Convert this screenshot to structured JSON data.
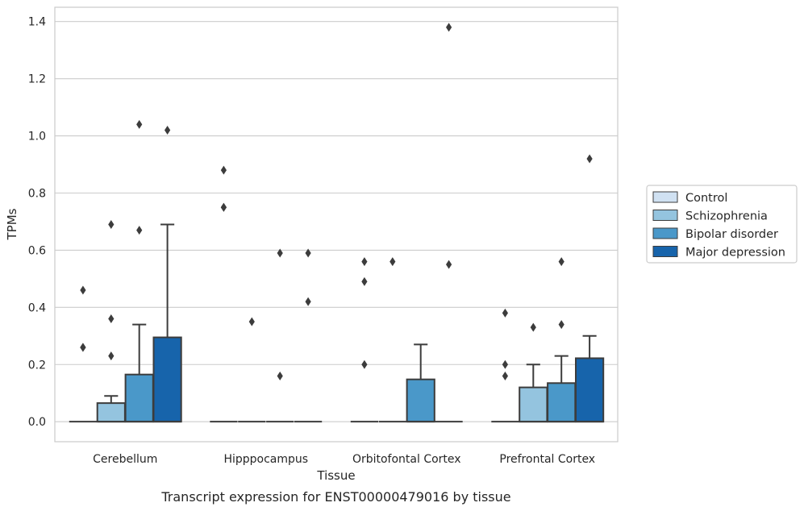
{
  "caption": "Transcript expression for ENST00000479016 by tissue",
  "chart_data": {
    "type": "box",
    "title": "",
    "xlabel": "Tissue",
    "ylabel": "TPMs",
    "ylim": [
      -0.07,
      1.45
    ],
    "yticks": [
      "0.0",
      "0.2",
      "0.4",
      "0.6",
      "0.8",
      "1.0",
      "1.2",
      "1.4"
    ],
    "ytick_values": [
      0.0,
      0.2,
      0.4,
      0.6,
      0.8,
      1.0,
      1.2,
      1.4
    ],
    "grid": true,
    "legend_position": "right",
    "categories": [
      "Cerebellum",
      "Hipppocampus",
      "Orbitofontal Cortex",
      "Prefrontal Cortex"
    ],
    "series": [
      {
        "name": "Control",
        "color": "#d0e1f2",
        "boxes": [
          {
            "q1": 0,
            "median": 0,
            "q3": 0,
            "whisker_low": 0,
            "whisker_high": 0,
            "outliers": [
              0.26,
              0.26,
              0.46
            ]
          },
          {
            "q1": 0,
            "median": 0,
            "q3": 0,
            "whisker_low": 0,
            "whisker_high": 0,
            "outliers": [
              0.75,
              0.75,
              0.88
            ]
          },
          {
            "q1": 0,
            "median": 0,
            "q3": 0,
            "whisker_low": 0,
            "whisker_high": 0,
            "outliers": [
              0.2,
              0.49,
              0.56
            ]
          },
          {
            "q1": 0,
            "median": 0,
            "q3": 0,
            "whisker_low": 0,
            "whisker_high": 0,
            "outliers": [
              0.16,
              0.2,
              0.38
            ]
          }
        ]
      },
      {
        "name": "Schizophrenia",
        "color": "#94c4df",
        "boxes": [
          {
            "q1": 0,
            "median": 0,
            "q3": 0.065,
            "whisker_low": 0,
            "whisker_high": 0.09,
            "outliers": [
              0.23,
              0.36,
              0.69
            ]
          },
          {
            "q1": 0,
            "median": 0,
            "q3": 0,
            "whisker_low": 0,
            "whisker_high": 0,
            "outliers": [
              0.35
            ]
          },
          {
            "q1": 0,
            "median": 0,
            "q3": 0,
            "whisker_low": 0,
            "whisker_high": 0,
            "outliers": [
              0.56
            ]
          },
          {
            "q1": 0,
            "median": 0,
            "q3": 0.12,
            "whisker_low": 0,
            "whisker_high": 0.2,
            "outliers": [
              0.33
            ]
          }
        ]
      },
      {
        "name": "Bipolar disorder",
        "color": "#4a98c9",
        "boxes": [
          {
            "q1": 0,
            "median": 0,
            "q3": 0.165,
            "whisker_low": 0,
            "whisker_high": 0.34,
            "outliers": [
              0.67,
              1.04
            ]
          },
          {
            "q1": 0,
            "median": 0,
            "q3": 0,
            "whisker_low": 0,
            "whisker_high": 0,
            "outliers": [
              0.16,
              0.59
            ]
          },
          {
            "q1": 0,
            "median": 0,
            "q3": 0.148,
            "whisker_low": 0,
            "whisker_high": 0.27,
            "outliers": []
          },
          {
            "q1": 0,
            "median": 0,
            "q3": 0.135,
            "whisker_low": 0,
            "whisker_high": 0.23,
            "outliers": [
              0.34,
              0.56
            ]
          }
        ]
      },
      {
        "name": "Major depression",
        "color": "#1764ab",
        "boxes": [
          {
            "q1": 0,
            "median": 0,
            "q3": 0.295,
            "whisker_low": 0,
            "whisker_high": 0.69,
            "outliers": [
              1.02
            ]
          },
          {
            "q1": 0,
            "median": 0,
            "q3": 0,
            "whisker_low": 0,
            "whisker_high": 0,
            "outliers": [
              0.42,
              0.59
            ]
          },
          {
            "q1": 0,
            "median": 0,
            "q3": 0,
            "whisker_low": 0,
            "whisker_high": 0,
            "outliers": [
              0.55,
              1.38
            ]
          },
          {
            "q1": 0,
            "median": 0,
            "q3": 0.222,
            "whisker_low": 0,
            "whisker_high": 0.3,
            "outliers": [
              0.92
            ]
          }
        ]
      }
    ]
  }
}
